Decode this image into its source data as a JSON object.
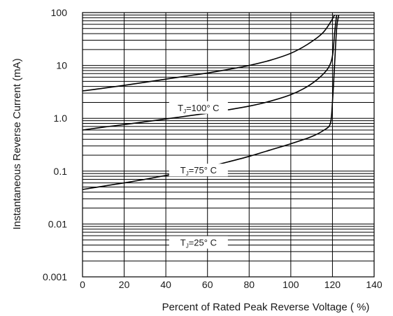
{
  "chart_data": {
    "type": "line",
    "title": "",
    "xlabel": "Percent of Rated Peak Reverse Voltage ( %)",
    "ylabel": "Instantaneous Reverse Current (mA)",
    "xlim": [
      0,
      140
    ],
    "ylim": [
      0.001,
      100
    ],
    "yscale": "log",
    "grid": true,
    "x_ticks": [
      "0",
      "20",
      "40",
      "60",
      "80",
      "100",
      "120",
      "140"
    ],
    "y_ticks": [
      {
        "value": 100,
        "label": "100"
      },
      {
        "value": 10,
        "label": "10"
      },
      {
        "value": 1,
        "label": "1.0"
      },
      {
        "value": 0.1,
        "label": "0.1"
      },
      {
        "value": 0.01,
        "label": "0.01"
      },
      {
        "value": 0.001,
        "label": "0.001"
      }
    ],
    "series": [
      {
        "name": "T_J=100° C",
        "label_sub": "J",
        "label_prefix": "T",
        "label_suffix": "=100° C",
        "label_at": [
          53,
          1.6
        ],
        "points": [
          [
            0,
            3.3
          ],
          [
            10,
            3.7
          ],
          [
            20,
            4.2
          ],
          [
            30,
            4.8
          ],
          [
            40,
            5.5
          ],
          [
            50,
            6.3
          ],
          [
            60,
            7.2
          ],
          [
            70,
            8.4
          ],
          [
            80,
            10.0
          ],
          [
            90,
            12.5
          ],
          [
            100,
            17
          ],
          [
            108,
            25
          ],
          [
            115,
            40
          ],
          [
            119,
            65
          ],
          [
            121,
            90
          ]
        ]
      },
      {
        "name": "T_J=75° C",
        "label_sub": "J",
        "label_prefix": "T",
        "label_suffix": "=75° C",
        "label_at": [
          53,
          0.105
        ],
        "points": [
          [
            0,
            0.6
          ],
          [
            10,
            0.68
          ],
          [
            20,
            0.76
          ],
          [
            30,
            0.86
          ],
          [
            40,
            0.97
          ],
          [
            50,
            1.1
          ],
          [
            60,
            1.25
          ],
          [
            70,
            1.45
          ],
          [
            80,
            1.7
          ],
          [
            90,
            2.1
          ],
          [
            100,
            2.8
          ],
          [
            108,
            4
          ],
          [
            114,
            6
          ],
          [
            118,
            9
          ],
          [
            120,
            15
          ],
          [
            121,
            40
          ],
          [
            122,
            90
          ]
        ]
      },
      {
        "name": "T_J=25° C",
        "label_sub": "J",
        "label_prefix": "T",
        "label_suffix": "=25° C",
        "label_at": [
          53,
          0.0045
        ],
        "points": [
          [
            0,
            0.045
          ],
          [
            10,
            0.052
          ],
          [
            20,
            0.06
          ],
          [
            30,
            0.07
          ],
          [
            40,
            0.083
          ],
          [
            50,
            0.1
          ],
          [
            60,
            0.12
          ],
          [
            70,
            0.15
          ],
          [
            80,
            0.19
          ],
          [
            90,
            0.25
          ],
          [
            100,
            0.33
          ],
          [
            110,
            0.45
          ],
          [
            116,
            0.6
          ],
          [
            119,
            0.8
          ],
          [
            120,
            2
          ],
          [
            121,
            10
          ],
          [
            122,
            50
          ],
          [
            123,
            90
          ]
        ]
      }
    ]
  }
}
